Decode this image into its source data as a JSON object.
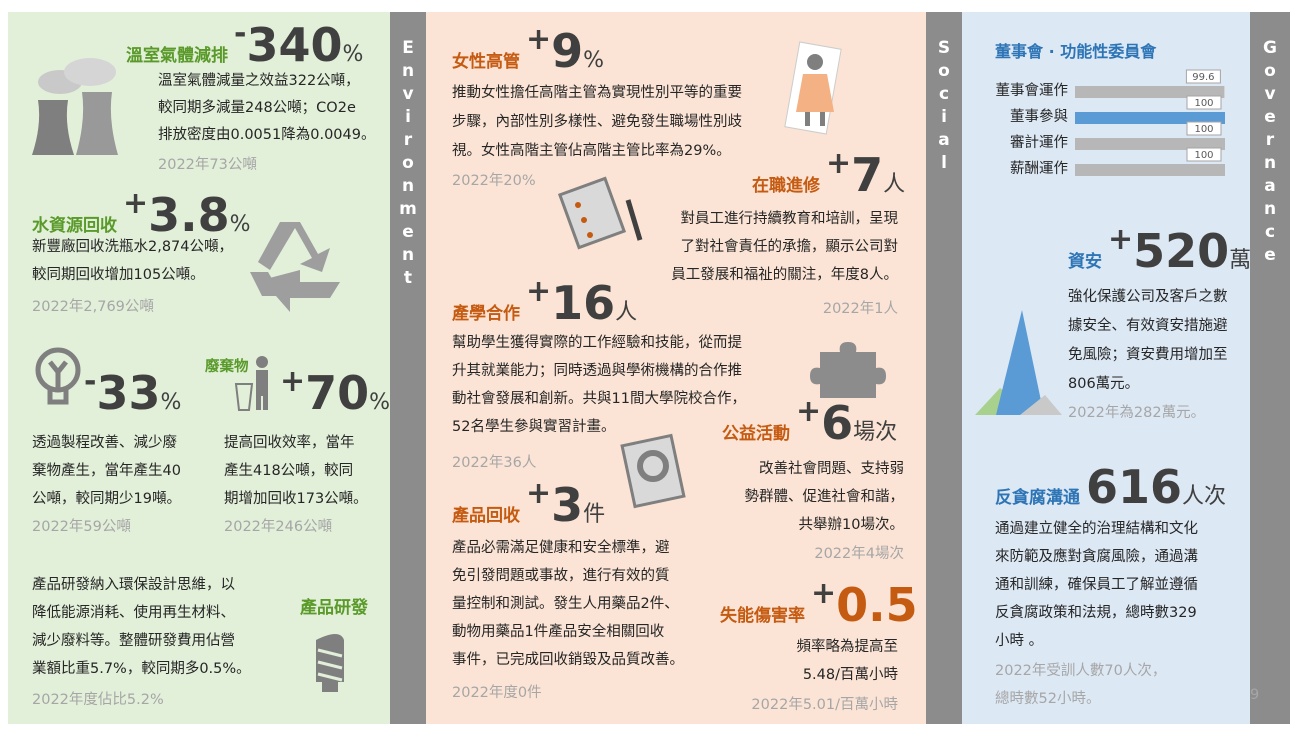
{
  "environment": {
    "label": "Environment",
    "ghg": {
      "title": "溫室氣體減排",
      "sign": "-",
      "value": 340,
      "unit": "%",
      "body": [
        "溫室氣體減量之效益322公噸，",
        "較同期多減量248公噸；CO2e",
        "排放密度由0.0051降為0.0049。"
      ],
      "previous": "2022年73公噸"
    },
    "water": {
      "title": "水資源回收",
      "sign": "+",
      "value": 3.8,
      "unit": "%",
      "body": [
        "新豐廠回收洗瓶水2,874公噸，",
        "較同期回收增加105公噸。"
      ],
      "previous": "2022年2,769公噸"
    },
    "waste": {
      "title": "廢棄物",
      "reduce": {
        "sign": "-",
        "value": 33,
        "unit": "%",
        "body": [
          "透過製程改善、減少廢",
          "棄物產生，當年產生40",
          "公噸，較同期少19噸。"
        ],
        "previous": "2022年59公噸"
      },
      "recycle": {
        "sign": "+",
        "value": 70,
        "unit": "%",
        "body": [
          "提高回收效率，當年",
          "產生418公噸，較同",
          "期增加回收173公噸。"
        ],
        "previous": "2022年246公噸"
      }
    },
    "rnd": {
      "title": "產品研發",
      "body": [
        "產品研發納入環保設計思維，以",
        "降低能源消耗、使用再生材料、",
        "減少廢料等。整體研發費用佔營",
        "業額比重5.7%，較同期多0.5%。"
      ],
      "previous": "2022年度佔比5.2%"
    }
  },
  "social": {
    "label": "Social",
    "women": {
      "title": "女性高管",
      "sign": "+",
      "value": 9,
      "unit": "%",
      "body": [
        "推動女性擔任高階主管為實現性別平等的重要",
        "步驟，內部性別多樣性、避免發生職場性別歧",
        "視。女性高階主管佔高階主管比率為29%。"
      ],
      "previous": "2022年20%"
    },
    "training": {
      "title": "在職進修",
      "sign": "+",
      "value": 7,
      "unit": "人",
      "body": [
        "對員工進行持續教育和培訓，呈現",
        "了對社會責任的承擔，顯示公司對",
        "員工發展和福祉的關注，年度8人。"
      ],
      "previous": "2022年1人"
    },
    "cooperation": {
      "title": "產學合作",
      "sign": "+",
      "value": 16,
      "unit": "人",
      "body": [
        "幫助學生獲得實際的工作經驗和技能，從而提",
        "升其就業能力；同時透過與學術機構的合作推",
        "動社會發展和創新。共與11間大學院校合作，",
        "52名學生參與實習計畫。"
      ],
      "previous": "2022年36人"
    },
    "product_recall": {
      "title": "產品回收",
      "sign": "+",
      "value": 3,
      "unit": "件",
      "body": [
        "產品必需滿足健康和安全標準，避",
        "免引發問題或事故，進行有效的質",
        "量控制和測試。發生人用藥品2件、",
        "動物用藥品1件產品安全相關回收",
        "事件，已完成回收銷毀及品質改善。"
      ],
      "previous": "2022年度0件"
    },
    "charity": {
      "title": "公益活動",
      "sign": "+",
      "value": 6,
      "unit": "場次",
      "body": [
        "改善社會問題、支持弱",
        "勢群體、促進社會和諧，",
        "共舉辦10場次。"
      ],
      "previous": "2022年4場次"
    },
    "injury": {
      "title": "失能傷害率",
      "sign": "+",
      "value": 0.5,
      "body": [
        "頻率略為提高至",
        "5.48/百萬小時"
      ],
      "previous": "2022年5.01/百萬小時"
    }
  },
  "governance": {
    "label": "Governance",
    "board": {
      "title": "董事會 · 功能性委員會",
      "xlim": [
        0,
        100
      ],
      "items": [
        {
          "label": "董事會運作",
          "value": 99.6,
          "color": "#b7b7b7"
        },
        {
          "label": "董事參與",
          "value": 100,
          "color": "#5b9bd5"
        },
        {
          "label": "審計運作",
          "value": 100,
          "color": "#b7b7b7"
        },
        {
          "label": "薪酬運作",
          "value": 100,
          "color": "#b7b7b7"
        }
      ]
    },
    "security": {
      "title": "資安",
      "sign": "+",
      "value": 520,
      "unit": "萬",
      "body": [
        "強化保護公司及客戶之數",
        "據安全、有效資安措施避",
        "免風險；資安費用增加至",
        "806萬元。"
      ],
      "previous": "2022年為282萬元。"
    },
    "anticorruption": {
      "title": "反貪腐溝通",
      "value": 616,
      "unit": "人次",
      "body": [
        "通過建立健全的治理結構和文化",
        "來防範及應對貪腐風險，通過溝",
        "通和訓練，確保員工了解並遵循",
        "反貪腐政策和法規，總時數329",
        "小時 。"
      ],
      "previous": [
        "2022年受訓人數70人次，",
        "總時數52小時。"
      ]
    },
    "page_number": "9"
  }
}
